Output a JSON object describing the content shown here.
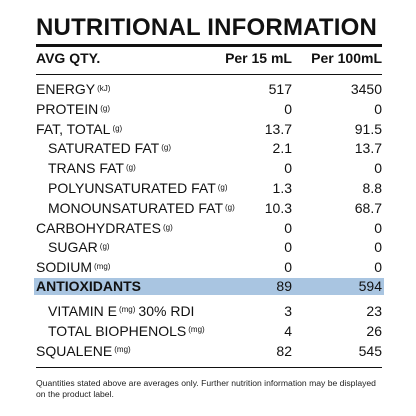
{
  "panel": {
    "title": "NUTRITIONAL INFORMATION",
    "header": {
      "label": "AVG QTY.",
      "col1": "Per 15 mL",
      "col2": "Per 100mL"
    },
    "rows": [
      {
        "name": "ENERGY",
        "unit": "(kJ)",
        "per15": "517",
        "per100": "3450"
      },
      {
        "name": "PROTEIN",
        "unit": "(g)",
        "per15": "0",
        "per100": "0"
      },
      {
        "name": "FAT, TOTAL",
        "unit": "(g)",
        "per15": "13.7",
        "per100": "91.5"
      },
      {
        "name": "SATURATED FAT",
        "unit": "(g)",
        "per15": "2.1",
        "per100": "13.7"
      },
      {
        "name": "TRANS FAT",
        "unit": "(g)",
        "per15": "0",
        "per100": "0"
      },
      {
        "name": "POLYUNSATURATED FAT",
        "unit": "(g)",
        "per15": "1.3",
        "per100": "8.8"
      },
      {
        "name": "MONOUNSATURATED FAT",
        "unit": "(g)",
        "per15": "10.3",
        "per100": "68.7"
      },
      {
        "name": "CARBOHYDRATES",
        "unit": "(g)",
        "per15": "0",
        "per100": "0"
      },
      {
        "name": "SUGAR",
        "unit": "(g)",
        "per15": "0",
        "per100": "0"
      },
      {
        "name": "SODIUM",
        "unit": "(mg)",
        "per15": "0",
        "per100": "0"
      }
    ],
    "highlight": {
      "name": "ANTIOXIDANTS",
      "per15": "89",
      "per100": "594",
      "color": "#a9c5e1"
    },
    "rows2": [
      {
        "name": "VITAMIN E",
        "unit": "(mg)",
        "extra": "30% RDI",
        "per15": "3",
        "per100": "23"
      },
      {
        "name": "TOTAL BIOPHENOLS",
        "unit": "(mg)",
        "per15": "4",
        "per100": "26"
      },
      {
        "name": "SQUALENE",
        "unit": "(mg)",
        "per15": "82",
        "per100": "545"
      }
    ],
    "footnote": "Quantities stated above are averages only. Further nutrition information may be displayed on the product label."
  }
}
